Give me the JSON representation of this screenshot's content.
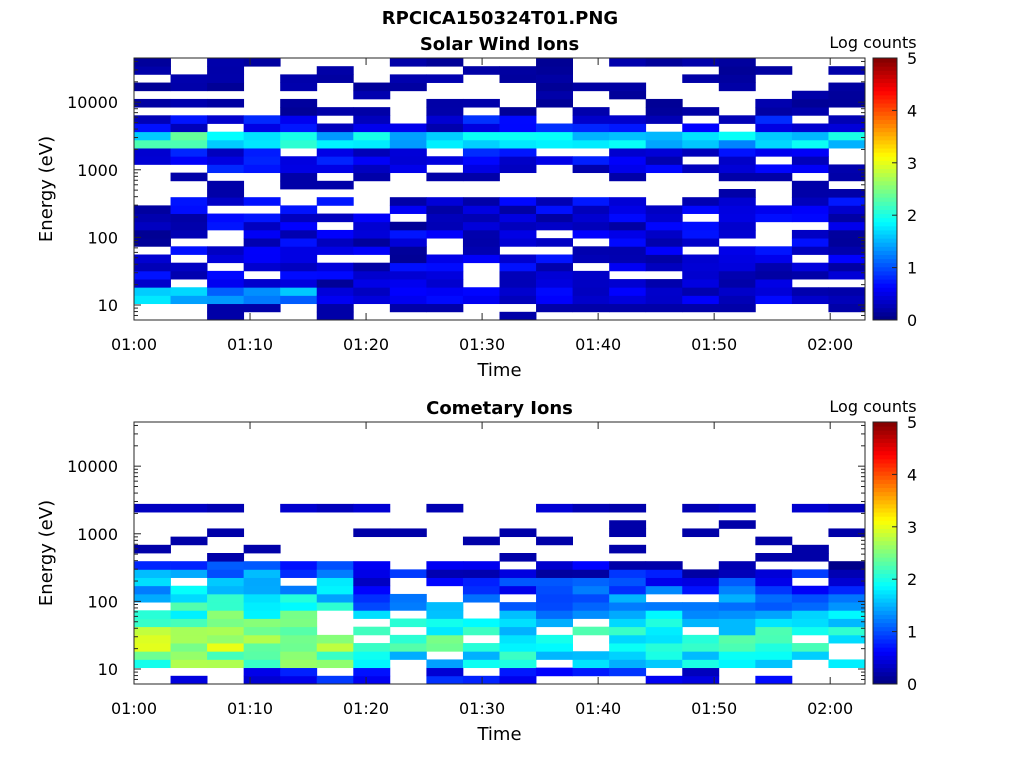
{
  "figure_title": "RPCICA150324T01.PNG",
  "chart_data": [
    {
      "type": "heatmap",
      "title": "Solar Wind Ions",
      "xlabel": "Time",
      "ylabel": "Energy (eV)",
      "y_scale": "log",
      "ylim": [
        6,
        45000
      ],
      "xlim": [
        "01:00",
        "02:03"
      ],
      "x_ticks": [
        "01:00",
        "01:10",
        "01:20",
        "01:30",
        "01:40",
        "01:50",
        "02:00"
      ],
      "y_ticks": [
        "10",
        "100",
        "1000",
        "10000"
      ],
      "colorbar": {
        "label": "Log counts",
        "range": [
          0,
          5
        ],
        "ticks": [
          "0",
          "1",
          "2",
          "3",
          "4",
          "5"
        ],
        "colormap": "jet"
      },
      "grid": false,
      "time_bins": 20,
      "energy_bins": 32,
      "features": {
        "solar_wind_peak_energy_eV": 2500,
        "solar_wind_peak_log_counts": 2.0,
        "low_energy_band_eV": [
          15,
          30
        ],
        "low_energy_peak_log_counts": 1.8
      }
    },
    {
      "type": "heatmap",
      "title": "Cometary Ions",
      "xlabel": "Time",
      "ylabel": "Energy (eV)",
      "y_scale": "log",
      "ylim": [
        6,
        45000
      ],
      "xlim": [
        "01:00",
        "02:03"
      ],
      "x_ticks": [
        "01:00",
        "01:10",
        "01:20",
        "01:30",
        "01:40",
        "01:50",
        "02:00"
      ],
      "y_ticks": [
        "10",
        "100",
        "1000",
        "10000"
      ],
      "colorbar": {
        "label": "Log counts",
        "range": [
          0,
          5
        ],
        "ticks": [
          "0",
          "1",
          "2",
          "3",
          "4",
          "5"
        ],
        "colormap": "jet"
      },
      "grid": false,
      "time_bins": 20,
      "energy_bins": 32,
      "features": {
        "cometary_peak_energy_eV": 25,
        "cometary_peak_log_counts": 2.9,
        "band_upper_energy_eV": 400,
        "sparse_band_energy_eV": 2500
      }
    }
  ]
}
